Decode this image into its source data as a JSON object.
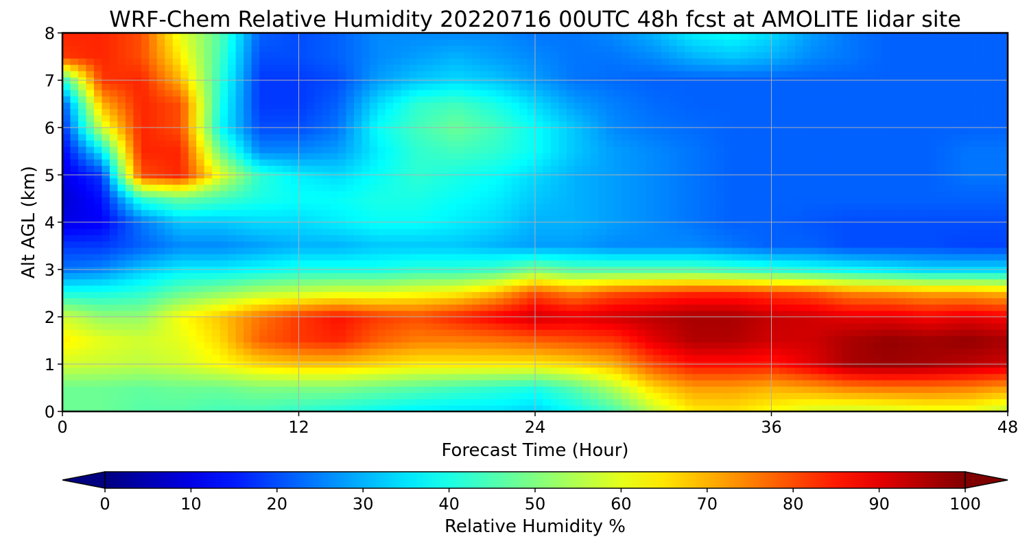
{
  "chart_data": {
    "type": "heatmap",
    "title": "WRF-Chem Relative Humidity 20220716 00UTC 48h fcst at AMOLITE lidar site",
    "xlabel": "Forecast Time (Hour)",
    "ylabel": "Alt AGL (km)",
    "xlim": [
      0,
      48
    ],
    "ylim": [
      0,
      8
    ],
    "x_ticks": [
      "0",
      "12",
      "24",
      "36",
      "48"
    ],
    "y_ticks": [
      "0",
      "1",
      "2",
      "3",
      "4",
      "5",
      "6",
      "7",
      "8"
    ],
    "grid": true,
    "colormap": "jet",
    "colorbar": {
      "label": "Relative Humidity %",
      "range": [
        0,
        100
      ],
      "ticks": [
        "0",
        "10",
        "20",
        "30",
        "40",
        "50",
        "60",
        "70",
        "80",
        "90",
        "100"
      ],
      "extend": "both",
      "orientation": "horizontal"
    },
    "grid_x_hours": [
      0,
      2,
      4,
      6,
      8,
      10,
      12,
      14,
      16,
      18,
      20,
      22,
      24,
      26,
      28,
      30,
      32,
      34,
      36,
      38,
      40,
      42,
      44,
      46,
      48
    ],
    "grid_y_km": [
      0,
      0.5,
      1,
      1.5,
      2,
      2.5,
      3,
      3.5,
      4,
      4.5,
      5,
      5.5,
      6,
      6.5,
      7,
      7.5,
      8
    ],
    "values": [
      [
        48,
        48,
        46,
        46,
        44,
        44,
        42,
        40,
        38,
        36,
        35,
        35,
        33,
        38,
        44,
        56,
        64,
        65,
        62,
        58,
        57,
        58,
        60,
        60,
        56
      ],
      [
        48,
        48,
        47,
        48,
        48,
        50,
        50,
        50,
        48,
        46,
        44,
        42,
        40,
        46,
        55,
        66,
        72,
        72,
        70,
        72,
        75,
        76,
        76,
        75,
        72
      ],
      [
        58,
        57,
        56,
        58,
        62,
        66,
        68,
        68,
        66,
        64,
        64,
        64,
        64,
        66,
        70,
        80,
        86,
        86,
        85,
        90,
        96,
        97,
        96,
        94,
        92
      ],
      [
        64,
        60,
        58,
        60,
        66,
        78,
        82,
        84,
        78,
        75,
        75,
        76,
        78,
        80,
        82,
        90,
        95,
        95,
        92,
        92,
        96,
        98,
        97,
        98,
        96
      ],
      [
        58,
        52,
        52,
        62,
        68,
        76,
        82,
        86,
        82,
        80,
        84,
        88,
        92,
        90,
        92,
        94,
        96,
        96,
        93,
        92,
        90,
        90,
        88,
        90,
        88
      ],
      [
        40,
        40,
        42,
        48,
        52,
        56,
        58,
        60,
        60,
        62,
        64,
        70,
        80,
        75,
        80,
        82,
        84,
        84,
        82,
        80,
        75,
        74,
        72,
        72,
        70
      ],
      [
        24,
        26,
        32,
        36,
        36,
        38,
        40,
        40,
        40,
        42,
        42,
        44,
        50,
        46,
        46,
        46,
        46,
        44,
        42,
        40,
        38,
        36,
        34,
        34,
        34
      ],
      [
        18,
        18,
        22,
        26,
        26,
        28,
        30,
        30,
        32,
        32,
        32,
        30,
        28,
        28,
        26,
        26,
        26,
        24,
        22,
        22,
        20,
        20,
        20,
        19,
        19
      ],
      [
        10,
        12,
        24,
        32,
        32,
        34,
        34,
        36,
        38,
        38,
        36,
        34,
        30,
        30,
        28,
        26,
        24,
        22,
        22,
        21,
        20,
        20,
        20,
        20,
        20
      ],
      [
        8,
        14,
        42,
        48,
        44,
        40,
        38,
        38,
        40,
        40,
        38,
        36,
        32,
        30,
        28,
        26,
        24,
        22,
        22,
        22,
        22,
        22,
        22,
        22,
        22
      ],
      [
        10,
        18,
        80,
        84,
        60,
        42,
        36,
        34,
        38,
        42,
        40,
        38,
        34,
        30,
        28,
        26,
        24,
        22,
        22,
        22,
        22,
        22,
        22,
        24,
        24
      ],
      [
        12,
        36,
        84,
        84,
        48,
        26,
        26,
        28,
        36,
        42,
        44,
        42,
        38,
        32,
        28,
        26,
        24,
        22,
        22,
        22,
        22,
        22,
        22,
        24,
        24
      ],
      [
        16,
        58,
        84,
        80,
        38,
        20,
        20,
        24,
        38,
        44,
        48,
        44,
        38,
        32,
        26,
        24,
        23,
        22,
        22,
        22,
        22,
        22,
        22,
        22,
        22
      ],
      [
        20,
        70,
        84,
        80,
        40,
        18,
        18,
        22,
        34,
        42,
        44,
        40,
        34,
        28,
        25,
        23,
        22,
        22,
        22,
        22,
        22,
        22,
        22,
        22,
        22
      ],
      [
        40,
        82,
        84,
        70,
        42,
        18,
        18,
        20,
        28,
        32,
        34,
        32,
        28,
        24,
        23,
        22,
        22,
        22,
        22,
        22,
        22,
        22,
        22,
        22,
        22
      ],
      [
        82,
        84,
        80,
        64,
        44,
        20,
        20,
        22,
        26,
        28,
        30,
        28,
        26,
        24,
        24,
        26,
        30,
        32,
        30,
        26,
        24,
        22,
        22,
        22,
        22
      ],
      [
        84,
        84,
        80,
        60,
        46,
        22,
        20,
        22,
        26,
        26,
        26,
        26,
        24,
        24,
        26,
        30,
        36,
        38,
        34,
        28,
        24,
        22,
        22,
        22,
        22
      ]
    ]
  }
}
